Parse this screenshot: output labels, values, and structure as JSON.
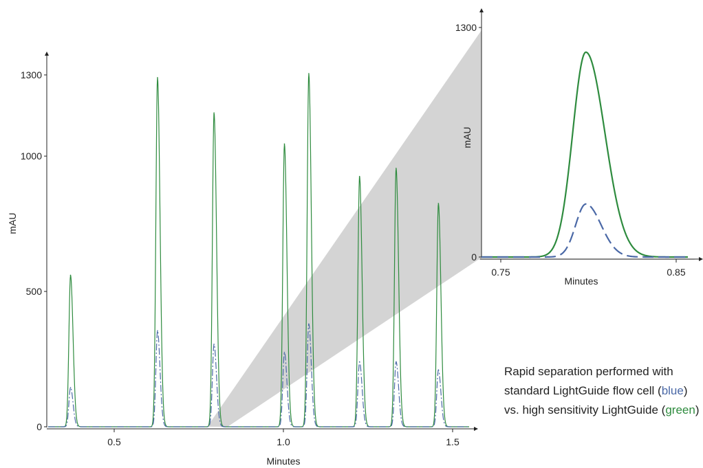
{
  "colors": {
    "blue": "#4a68a6",
    "green": "#2e8b3e",
    "zoom_fill": "#d4d4d4",
    "axis": "#222222"
  },
  "caption": {
    "part1": "Rapid separation performed with standard LightGuide flow cell (",
    "blue_word": "blue",
    "part2": ") vs. high sensitivity LightGuide (",
    "green_word": "green",
    "part3": ")"
  },
  "chart_data": [
    {
      "type": "line",
      "xlabel": "Minutes",
      "ylabel": "mAU",
      "xlim": [
        0.33,
        1.55
      ],
      "ylim": [
        -20,
        1400
      ],
      "x_ticks": [
        0.5,
        1.0,
        1.5
      ],
      "x_tick_labels": [
        "0.5",
        "1.0",
        "1.5"
      ],
      "y_ticks": [
        0,
        500,
        1000,
        1300
      ],
      "y_tick_labels": [
        "0",
        "500",
        "1000",
        "1300"
      ],
      "grid": false,
      "series": [
        {
          "name": "green",
          "style": "solid",
          "peaks": [
            {
              "x": 0.371,
              "y": 560
            },
            {
              "x": 0.628,
              "y": 1290
            },
            {
              "x": 0.795,
              "y": 1160
            },
            {
              "x": 1.003,
              "y": 1045
            },
            {
              "x": 1.075,
              "y": 1305
            },
            {
              "x": 1.225,
              "y": 925
            },
            {
              "x": 1.333,
              "y": 955
            },
            {
              "x": 1.458,
              "y": 825
            }
          ]
        },
        {
          "name": "blue",
          "style": "dashed",
          "peaks": [
            {
              "x": 0.371,
              "y": 145
            },
            {
              "x": 0.628,
              "y": 355
            },
            {
              "x": 0.795,
              "y": 305
            },
            {
              "x": 1.003,
              "y": 275
            },
            {
              "x": 1.075,
              "y": 380
            },
            {
              "x": 1.225,
              "y": 240
            },
            {
              "x": 1.333,
              "y": 240
            },
            {
              "x": 1.458,
              "y": 210
            }
          ]
        }
      ]
    },
    {
      "type": "line",
      "xlabel": "Minutes",
      "ylabel": "mAU",
      "xlim": [
        0.742,
        0.858
      ],
      "ylim": [
        -20,
        1400
      ],
      "x_ticks": [
        0.75,
        0.85
      ],
      "x_tick_labels": [
        "0.75",
        "0.85"
      ],
      "y_ticks": [
        0,
        1300
      ],
      "y_tick_labels": [
        "0",
        "1300"
      ],
      "grid": false,
      "series": [
        {
          "name": "green",
          "style": "solid",
          "peaks": [
            {
              "x": 0.7985,
              "y": 1160
            }
          ]
        },
        {
          "name": "blue",
          "style": "dashed",
          "peaks": [
            {
              "x": 0.7985,
              "y": 300
            }
          ]
        }
      ]
    }
  ]
}
